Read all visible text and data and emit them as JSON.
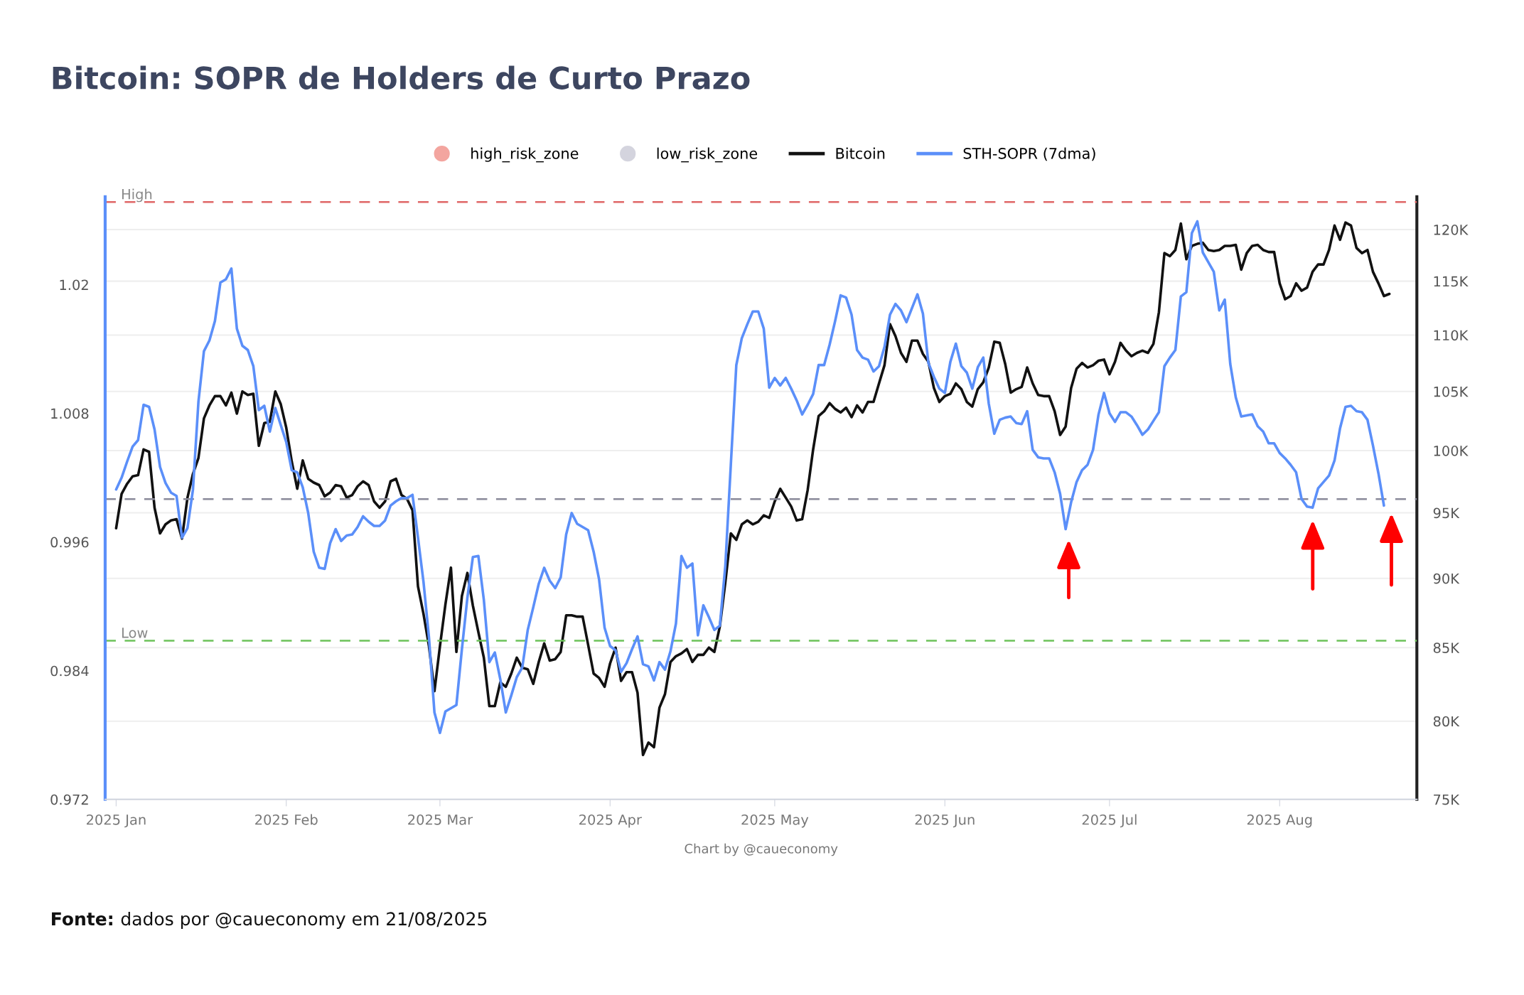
{
  "chart_data": {
    "type": "line",
    "title": "Bitcoin: SOPR de Holders de Curto Prazo",
    "annotations": [
      "Chart by @caueconomy",
      "Fonte:",
      "dados por @caueconomy em 21/08/2025"
    ],
    "x": [
      "2025-01-01",
      "2025-01-02",
      "2025-01-03",
      "2025-01-04",
      "2025-01-05",
      "2025-01-06",
      "2025-01-07",
      "2025-01-08",
      "2025-01-09",
      "2025-01-10",
      "2025-01-11",
      "2025-01-12",
      "2025-01-13",
      "2025-01-14",
      "2025-01-15",
      "2025-01-16",
      "2025-01-17",
      "2025-01-18",
      "2025-01-19",
      "2025-01-20",
      "2025-01-21",
      "2025-01-22",
      "2025-01-23",
      "2025-01-24",
      "2025-01-25",
      "2025-01-26",
      "2025-01-27",
      "2025-01-28",
      "2025-01-29",
      "2025-01-30",
      "2025-01-31",
      "2025-02-01",
      "2025-02-02",
      "2025-02-03",
      "2025-02-04",
      "2025-02-05",
      "2025-02-06",
      "2025-02-07",
      "2025-02-08",
      "2025-02-09",
      "2025-02-10",
      "2025-02-11",
      "2025-02-12",
      "2025-02-13",
      "2025-02-14",
      "2025-02-15",
      "2025-02-16",
      "2025-02-17",
      "2025-02-18",
      "2025-02-19",
      "2025-02-20",
      "2025-02-21",
      "2025-02-22",
      "2025-02-23",
      "2025-02-24",
      "2025-02-25",
      "2025-02-26",
      "2025-02-27",
      "2025-02-28",
      "2025-03-01",
      "2025-03-02",
      "2025-03-03",
      "2025-03-04",
      "2025-03-05",
      "2025-03-06",
      "2025-03-07",
      "2025-03-08",
      "2025-03-09",
      "2025-03-10",
      "2025-03-11",
      "2025-03-12",
      "2025-03-13",
      "2025-03-14",
      "2025-03-15",
      "2025-03-16",
      "2025-03-17",
      "2025-03-18",
      "2025-03-19",
      "2025-03-20",
      "2025-03-21",
      "2025-03-22",
      "2025-03-23",
      "2025-03-24",
      "2025-03-25",
      "2025-03-26",
      "2025-03-27",
      "2025-03-28",
      "2025-03-29",
      "2025-03-30",
      "2025-03-31",
      "2025-04-01",
      "2025-04-02",
      "2025-04-03",
      "2025-04-04",
      "2025-04-05",
      "2025-04-06",
      "2025-04-07",
      "2025-04-08",
      "2025-04-09",
      "2025-04-10",
      "2025-04-11",
      "2025-04-12",
      "2025-04-13",
      "2025-04-14",
      "2025-04-15",
      "2025-04-16",
      "2025-04-17",
      "2025-04-18",
      "2025-04-19",
      "2025-04-20",
      "2025-04-21",
      "2025-04-22",
      "2025-04-23",
      "2025-04-24",
      "2025-04-25",
      "2025-04-26",
      "2025-04-27",
      "2025-04-28",
      "2025-04-29",
      "2025-04-30",
      "2025-05-01",
      "2025-05-02",
      "2025-05-03",
      "2025-05-04",
      "2025-05-05",
      "2025-05-06",
      "2025-05-07",
      "2025-05-08",
      "2025-05-09",
      "2025-05-10",
      "2025-05-11",
      "2025-05-12",
      "2025-05-13",
      "2025-05-14",
      "2025-05-15",
      "2025-05-16",
      "2025-05-17",
      "2025-05-18",
      "2025-05-19",
      "2025-05-20",
      "2025-05-21",
      "2025-05-22",
      "2025-05-23",
      "2025-05-24",
      "2025-05-25",
      "2025-05-26",
      "2025-05-27",
      "2025-05-28",
      "2025-05-29",
      "2025-05-30",
      "2025-05-31",
      "2025-06-01",
      "2025-06-02",
      "2025-06-03",
      "2025-06-04",
      "2025-06-05",
      "2025-06-06",
      "2025-06-07",
      "2025-06-08",
      "2025-06-09",
      "2025-06-10",
      "2025-06-11",
      "2025-06-12",
      "2025-06-13",
      "2025-06-14",
      "2025-06-15",
      "2025-06-16",
      "2025-06-17",
      "2025-06-18",
      "2025-06-19",
      "2025-06-20",
      "2025-06-21",
      "2025-06-22",
      "2025-06-23",
      "2025-06-24",
      "2025-06-25",
      "2025-06-26",
      "2025-06-27",
      "2025-06-28",
      "2025-06-29",
      "2025-06-30",
      "2025-07-01",
      "2025-07-02",
      "2025-07-03",
      "2025-07-04",
      "2025-07-05",
      "2025-07-06",
      "2025-07-07",
      "2025-07-08",
      "2025-07-09",
      "2025-07-10",
      "2025-07-11",
      "2025-07-12",
      "2025-07-13",
      "2025-07-14",
      "2025-07-15",
      "2025-07-16",
      "2025-07-17",
      "2025-07-18",
      "2025-07-19",
      "2025-07-20",
      "2025-07-21",
      "2025-07-22",
      "2025-07-23",
      "2025-07-24",
      "2025-07-25",
      "2025-07-26",
      "2025-07-27",
      "2025-07-28",
      "2025-07-29",
      "2025-07-30",
      "2025-07-31",
      "2025-08-01",
      "2025-08-02",
      "2025-08-03",
      "2025-08-04",
      "2025-08-05",
      "2025-08-06",
      "2025-08-07",
      "2025-08-08",
      "2025-08-09",
      "2025-08-10",
      "2025-08-11",
      "2025-08-12",
      "2025-08-13",
      "2025-08-14",
      "2025-08-15",
      "2025-08-16",
      "2025-08-17",
      "2025-08-18",
      "2025-08-19",
      "2025-08-20",
      "2025-08-21"
    ],
    "series": [
      {
        "name": "high_risk_zone",
        "type": "scatter",
        "color": "#f3a59f",
        "values": [
          null,
          null,
          null,
          null,
          null,
          null,
          null,
          null,
          null,
          null,
          null,
          null,
          null,
          null,
          null,
          null,
          null,
          null,
          null,
          null,
          null,
          null,
          null,
          null,
          null,
          null,
          null,
          null,
          null,
          null,
          null,
          null,
          null,
          null,
          null,
          null,
          null,
          null,
          null,
          null,
          null,
          null,
          null,
          null,
          null,
          null,
          null,
          null,
          null,
          null,
          null,
          null,
          null,
          null,
          null,
          null,
          null,
          null,
          null,
          null,
          null,
          null,
          null,
          null,
          null,
          null,
          null,
          null,
          null,
          null,
          null,
          null,
          null,
          null,
          null,
          null,
          null,
          null,
          null,
          null,
          null,
          null,
          null,
          null,
          null,
          null,
          null,
          null,
          null,
          null,
          null,
          null,
          null,
          null,
          null,
          null,
          null,
          null,
          null,
          null,
          null,
          null,
          null,
          null,
          null,
          null,
          null,
          null,
          null,
          null,
          null,
          null,
          null,
          null,
          null,
          null,
          null,
          null,
          null,
          null,
          null,
          null,
          null,
          null,
          null,
          null,
          null,
          null,
          null,
          null,
          null,
          null,
          null,
          null,
          null,
          null,
          null,
          null,
          null,
          null,
          null,
          null,
          null,
          null,
          null,
          null,
          null,
          null,
          null,
          null,
          null,
          null,
          null,
          null,
          null,
          null,
          null,
          null,
          null,
          null,
          null,
          null,
          null,
          null,
          null,
          null,
          null,
          null,
          null,
          null,
          null,
          null,
          null,
          null,
          null,
          null,
          null,
          null,
          null,
          null,
          null,
          null,
          null,
          null,
          null,
          null,
          null,
          null,
          null,
          null,
          null,
          null,
          null,
          null,
          null,
          null,
          null,
          null,
          null,
          null,
          null,
          null,
          null,
          null,
          null,
          null,
          null,
          null,
          null,
          null,
          null,
          null,
          null,
          null,
          null,
          null,
          null,
          null,
          null,
          null,
          null,
          null,
          null,
          null,
          null,
          null,
          null,
          null,
          null,
          null,
          null,
          null,
          null
        ]
      },
      {
        "name": "low_risk_zone",
        "type": "scatter",
        "color": "#d4d4de",
        "values": [
          null,
          null,
          null,
          null,
          null,
          null,
          null,
          null,
          null,
          null,
          null,
          null,
          null,
          null,
          null,
          null,
          null,
          null,
          null,
          null,
          null,
          null,
          null,
          null,
          null,
          null,
          null,
          null,
          null,
          null,
          null,
          null,
          null,
          null,
          null,
          null,
          null,
          null,
          null,
          null,
          null,
          null,
          null,
          null,
          null,
          null,
          null,
          null,
          null,
          null,
          null,
          null,
          null,
          null,
          null,
          null,
          null,
          null,
          null,
          null,
          null,
          null,
          null,
          null,
          null,
          null,
          null,
          null,
          null,
          null,
          null,
          null,
          null,
          null,
          null,
          null,
          null,
          null,
          null,
          null,
          null,
          null,
          null,
          null,
          null,
          null,
          null,
          null,
          null,
          null,
          null,
          null,
          null,
          null,
          null,
          null,
          null,
          null,
          null,
          null,
          null,
          null,
          null,
          null,
          null,
          null,
          null,
          null,
          null,
          null,
          null,
          null,
          null,
          null,
          null,
          null,
          null,
          null,
          null,
          null,
          null,
          null,
          null,
          null,
          null,
          null,
          null,
          null,
          null,
          null,
          null,
          null,
          null,
          null,
          null,
          null,
          null,
          null,
          null,
          null,
          null,
          null,
          null,
          null,
          null,
          null,
          null,
          null,
          null,
          null,
          null,
          null,
          null,
          null,
          null,
          null,
          null,
          null,
          null,
          null,
          null,
          null,
          null,
          null,
          null,
          null,
          null,
          null,
          null,
          null,
          null,
          null,
          null,
          null,
          null,
          null,
          null,
          null,
          null,
          null,
          null,
          null,
          null,
          null,
          null,
          null,
          null,
          null,
          null,
          null,
          null,
          null,
          null,
          null,
          null,
          null,
          null,
          null,
          null,
          null,
          null,
          null,
          null,
          null,
          null,
          null,
          null,
          null,
          null,
          null,
          null,
          null,
          null,
          null,
          null,
          null,
          null,
          null,
          null,
          null,
          null,
          null,
          null,
          null,
          null,
          null,
          null,
          null,
          null,
          null,
          null,
          null,
          null
        ]
      },
      {
        "name": "Bitcoin",
        "axis": "y2",
        "color": "#111111",
        "values": [
          93800,
          96500,
          97300,
          97900,
          98000,
          100100,
          99900,
          95400,
          93400,
          94100,
          94400,
          94500,
          93000,
          96200,
          98100,
          99400,
          102700,
          103800,
          104600,
          104600,
          103800,
          104900,
          103100,
          105000,
          104700,
          104800,
          100400,
          102300,
          102400,
          105000,
          103900,
          101900,
          99100,
          96900,
          99200,
          97700,
          97400,
          97200,
          96300,
          96600,
          97200,
          97100,
          96200,
          96400,
          97100,
          97500,
          97200,
          95900,
          95400,
          95900,
          97500,
          97700,
          96400,
          96100,
          95200,
          89400,
          87400,
          85100,
          82000,
          85100,
          88100,
          90800,
          84700,
          88700,
          90400,
          88000,
          86100,
          84300,
          81000,
          81000,
          82600,
          82300,
          83200,
          84300,
          83600,
          83500,
          82500,
          84000,
          85300,
          84100,
          84200,
          84700,
          87300,
          87300,
          87200,
          87200,
          85200,
          83200,
          82900,
          82300,
          83900,
          85000,
          82700,
          83300,
          83300,
          81900,
          77800,
          78600,
          78300,
          80900,
          81800,
          84000,
          84400,
          84600,
          84900,
          84000,
          84500,
          84500,
          85000,
          84700,
          86500,
          89700,
          93400,
          92900,
          94100,
          94400,
          94100,
          94300,
          94800,
          94600,
          95900,
          96900,
          96200,
          95500,
          94400,
          94500,
          96800,
          100100,
          102900,
          103300,
          104000,
          103500,
          103200,
          103600,
          102800,
          103800,
          103200,
          104100,
          104100,
          105700,
          107300,
          111000,
          109900,
          108400,
          107600,
          109500,
          109500,
          108300,
          107600,
          105300,
          104100,
          104600,
          104800,
          105700,
          105200,
          104100,
          103700,
          105200,
          105800,
          107100,
          109400,
          109300,
          107400,
          104900,
          105200,
          105400,
          107100,
          105700,
          104700,
          104600,
          104600,
          103300,
          101300,
          102000,
          105300,
          107000,
          107500,
          107100,
          107300,
          107700,
          107800,
          106500,
          107600,
          109300,
          108600,
          108100,
          108400,
          108600,
          108400,
          109200,
          112100,
          117700,
          117400,
          118000,
          120600,
          117100,
          118400,
          118600,
          118700,
          118000,
          117900,
          118000,
          118400,
          118400,
          118500,
          116100,
          117700,
          118400,
          118500,
          118000,
          117800,
          117800,
          114800,
          113300,
          113600,
          114800,
          114100,
          114400,
          115900,
          116600,
          116600,
          118000,
          120400,
          119000,
          120700,
          120400,
          118200,
          117700,
          118000,
          115900,
          114800,
          113600,
          113800
        ]
      },
      {
        "name": "STH-SOPR (7dma)",
        "color": "#5b8ff9",
        "values": [
          1.0009,
          1.002,
          1.0035,
          1.0049,
          1.0055,
          1.0088,
          1.0086,
          1.0065,
          1.003,
          1.0015,
          1.0006,
          1.0003,
          0.9964,
          0.9973,
          1.0009,
          1.0091,
          1.0138,
          1.0148,
          1.0166,
          1.0202,
          1.0205,
          1.0215,
          1.0159,
          1.0143,
          1.0139,
          1.0124,
          1.0083,
          1.0087,
          1.0063,
          1.0085,
          1.0069,
          1.0053,
          1.0027,
          1.0025,
          1.0011,
          0.9987,
          0.9951,
          0.9936,
          0.9935,
          0.9959,
          0.9972,
          0.9961,
          0.9966,
          0.9967,
          0.9974,
          0.9984,
          0.9979,
          0.9975,
          0.9975,
          0.998,
          0.9994,
          0.9998,
          1.0001,
          1.0001,
          1.0004,
          0.9964,
          0.9923,
          0.9871,
          0.9801,
          0.9782,
          0.9802,
          0.9805,
          0.9808,
          0.986,
          0.9908,
          0.9946,
          0.9947,
          0.9906,
          0.9848,
          0.9857,
          0.9832,
          0.9801,
          0.9817,
          0.9834,
          0.9843,
          0.9878,
          0.9899,
          0.9921,
          0.9936,
          0.9924,
          0.9917,
          0.9927,
          0.9967,
          0.9987,
          0.9977,
          0.9974,
          0.9971,
          0.9951,
          0.9925,
          0.988,
          0.9863,
          0.9859,
          0.9839,
          0.9847,
          0.986,
          0.9872,
          0.9846,
          0.9844,
          0.9831,
          0.9848,
          0.9841,
          0.9858,
          0.9884,
          0.9947,
          0.9936,
          0.994,
          0.9873,
          0.9901,
          0.989,
          0.9878,
          0.9882,
          0.9938,
          1.0032,
          1.0125,
          1.015,
          1.0163,
          1.0175,
          1.0175,
          1.0159,
          1.0104,
          1.0113,
          1.0106,
          1.0113,
          1.0103,
          1.0092,
          1.0079,
          1.0088,
          1.0098,
          1.0125,
          1.0125,
          1.0144,
          1.0166,
          1.019,
          1.0188,
          1.0172,
          1.0139,
          1.0132,
          1.013,
          1.0119,
          1.0124,
          1.0142,
          1.0172,
          1.0182,
          1.0176,
          1.0165,
          1.0178,
          1.0191,
          1.0173,
          1.0127,
          1.0114,
          1.0103,
          1.0099,
          1.0128,
          1.0145,
          1.0124,
          1.0118,
          1.0103,
          1.0123,
          1.0132,
          1.0089,
          1.0061,
          1.0074,
          1.0076,
          1.0077,
          1.0071,
          1.007,
          1.0082,
          1.0046,
          1.0039,
          1.0038,
          1.0038,
          1.0025,
          1.0005,
          0.9972,
          0.9997,
          1.0016,
          1.0027,
          1.0032,
          1.0046,
          1.0079,
          1.0099,
          1.008,
          1.0072,
          1.0081,
          1.0081,
          1.0077,
          1.0069,
          1.006,
          1.0065,
          1.0073,
          1.0081,
          1.0124,
          1.0132,
          1.0139,
          1.0189,
          1.0193,
          1.0248,
          1.0259,
          1.023,
          1.0221,
          1.0212,
          1.0176,
          1.0186,
          1.0126,
          1.0095,
          1.0077,
          1.0078,
          1.0079,
          1.0068,
          1.0063,
          1.0052,
          1.0052,
          1.0043,
          1.0038,
          1.0032,
          1.0025,
          1.0,
          0.9993,
          0.9992,
          1.001,
          1.0016,
          1.0022,
          1.0036,
          1.0066,
          1.0086,
          1.0087,
          1.0082,
          1.0081,
          1.0074,
          1.005,
          1.0024,
          0.9994,
          null
        ]
      }
    ],
    "xlim": [
      "2024-12-30",
      "2025-08-26"
    ],
    "xticks": [
      {
        "value": "2025-01-01",
        "label": "2025 Jan"
      },
      {
        "value": "2025-02-01",
        "label": "2025 Feb"
      },
      {
        "value": "2025-03-01",
        "label": "2025 Mar"
      },
      {
        "value": "2025-04-01",
        "label": "2025 Apr"
      },
      {
        "value": "2025-05-01",
        "label": "2025 May"
      },
      {
        "value": "2025-06-01",
        "label": "2025 Jun"
      },
      {
        "value": "2025-07-01",
        "label": "2025 Jul"
      },
      {
        "value": "2025-08-01",
        "label": "2025 Aug"
      }
    ],
    "ylim": [
      0.972,
      1.0282
    ],
    "yticks": [
      0.972,
      0.984,
      0.996,
      1.008,
      1.02
    ],
    "y2lim": [
      75000,
      123300
    ],
    "y2ticks": [
      {
        "value": 75000,
        "label": "75K"
      },
      {
        "value": 80000,
        "label": "80K"
      },
      {
        "value": 85000,
        "label": "85K"
      },
      {
        "value": 90000,
        "label": "90K"
      },
      {
        "value": 95000,
        "label": "95K"
      },
      {
        "value": 100000,
        "label": "100K"
      },
      {
        "value": 105000,
        "label": "105K"
      },
      {
        "value": 110000,
        "label": "110K"
      },
      {
        "value": 115000,
        "label": "115K"
      },
      {
        "value": 120000,
        "label": "120K"
      }
    ],
    "log": "y2",
    "ref_lines": [
      {
        "axis": "y",
        "value": 1.0277,
        "label": "High",
        "color": "#e06666",
        "line_style": "dashed"
      },
      {
        "axis": "y",
        "value": 1.0,
        "label": null,
        "color": "#8a8a9a",
        "line_style": "dashed"
      },
      {
        "axis": "y",
        "value": 0.9868,
        "label": "Low",
        "color": "#6cc25a",
        "line_style": "dashed"
      }
    ],
    "grid": "y",
    "legend": "top",
    "marker": "none",
    "line_style": "solid"
  }
}
